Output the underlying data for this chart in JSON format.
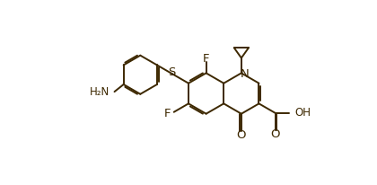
{
  "bg_color": "#ffffff",
  "line_color": "#3d2800",
  "line_width": 1.4,
  "font_size": 8.5,
  "fig_width": 4.2,
  "fig_height": 2.06,
  "dpi": 100,
  "xlim": [
    0,
    10
  ],
  "ylim": [
    0,
    4.9
  ]
}
